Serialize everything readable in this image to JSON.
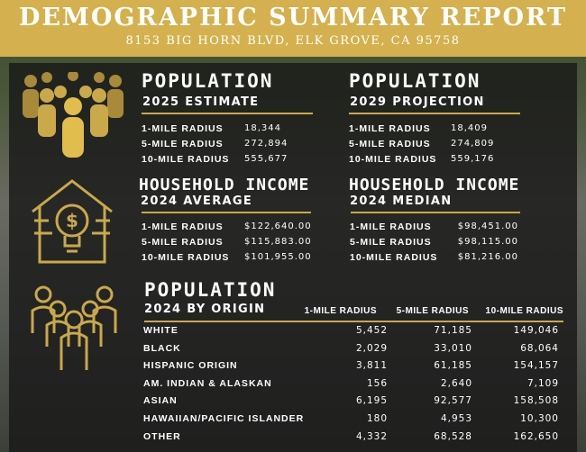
{
  "header": {
    "title": "DEMOGRAPHIC SUMMARY REPORT",
    "address": "8153 BIG HORN BLVD, ELK GROVE, CA 95758"
  },
  "colors": {
    "gold": "#d4b14e",
    "panel": "#191919"
  },
  "pop2025": {
    "title": "POPULATION",
    "subtitle": "2025 ESTIMATE",
    "rows": [
      {
        "label": "1-MILE RADIUS",
        "value": "18,344"
      },
      {
        "label": "5-MILE RADIUS",
        "value": "272,894"
      },
      {
        "label": "10-MILE RADIUS",
        "value": "555,677"
      }
    ]
  },
  "pop2029": {
    "title": "POPULATION",
    "subtitle": "2029 PROJECTION",
    "rows": [
      {
        "label": "1-MILE RADIUS",
        "value": "18,409"
      },
      {
        "label": "5-MILE RADIUS",
        "value": "274,809"
      },
      {
        "label": "10-MILE RADIUS",
        "value": "559,176"
      }
    ]
  },
  "hhAvg": {
    "title": "HOUSEHOLD INCOME",
    "subtitle": "2024 AVERAGE",
    "rows": [
      {
        "label": "1-MILE RADIUS",
        "value": "$122,640.00"
      },
      {
        "label": "5-MILE RADIUS",
        "value": "$115,883.00"
      },
      {
        "label": "10-MILE RADIUS",
        "value": "$101,955.00"
      }
    ]
  },
  "hhMed": {
    "title": "HOUSEHOLD INCOME",
    "subtitle": "2024 MEDIAN",
    "rows": [
      {
        "label": "1-MILE RADIUS",
        "value": "$98,451.00"
      },
      {
        "label": "5-MILE RADIUS",
        "value": "$98,115.00"
      },
      {
        "label": "10-MILE RADIUS",
        "value": "$81,216.00"
      }
    ]
  },
  "origin": {
    "title": "POPULATION",
    "subtitle": "2024 BY ORIGIN",
    "columns": [
      "1-MILE RADIUS",
      "5-MILE RADIUS",
      "10-MILE RADIUS"
    ],
    "rows": [
      {
        "label": "WHITE",
        "values": [
          "5,452",
          "71,185",
          "149,046"
        ]
      },
      {
        "label": "BLACK",
        "values": [
          "2,029",
          "33,010",
          "68,064"
        ]
      },
      {
        "label": "HISPANIC ORIGIN",
        "values": [
          "3,811",
          "61,185",
          "154,157"
        ]
      },
      {
        "label": "AM. INDIAN & ALASKAN",
        "values": [
          "156",
          "2,640",
          "7,109"
        ]
      },
      {
        "label": "ASIAN",
        "values": [
          "6,195",
          "92,577",
          "158,508"
        ]
      },
      {
        "label": "HAWAIIAN/PACIFIC ISLANDER",
        "values": [
          "180",
          "4,953",
          "10,300"
        ]
      },
      {
        "label": "OTHER",
        "values": [
          "4,332",
          "68,528",
          "162,650"
        ]
      }
    ]
  }
}
